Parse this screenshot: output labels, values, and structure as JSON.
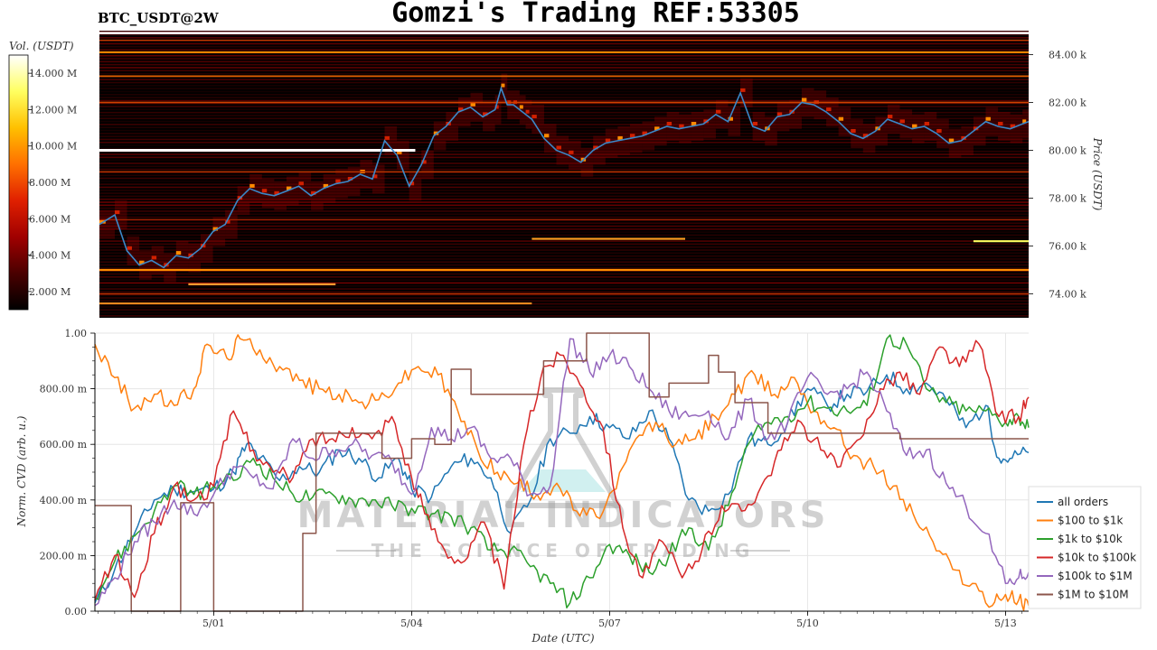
{
  "header": {
    "symbol": "BTC_USDT@2W",
    "title": "Gomzi's Trading REF:53305"
  },
  "colors": {
    "heatmap_background": "#000000",
    "price_line": "#3a88c8",
    "white_wall": "#ffffff"
  },
  "watermark": {
    "brand": "MATERIAL INDICATORS",
    "tagline": "THE SCIENCE OF TRADING",
    "icon": "flask-icon"
  },
  "chart_data": [
    {
      "type": "heatmap",
      "name": "order-book-heatmap",
      "y_axis_label": "Price (USDT)",
      "y_ticks": [
        {
          "value": 74000,
          "label": "74.00 k"
        },
        {
          "value": 76000,
          "label": "76.00 k"
        },
        {
          "value": 78000,
          "label": "78.00 k"
        },
        {
          "value": 80000,
          "label": "80.00 k"
        },
        {
          "value": 82000,
          "label": "82.00 k"
        },
        {
          "value": 84000,
          "label": "84.00 k"
        }
      ],
      "y_range": [
        73000,
        85000
      ],
      "x_range_days": [
        -2.45,
        12.7
      ],
      "colorbar": {
        "label": "Vol. (USDT)",
        "range": [
          1000000,
          15000000
        ],
        "ticks": [
          {
            "value": 2000000,
            "label": "2.000 M"
          },
          {
            "value": 4000000,
            "label": "4.000 M"
          },
          {
            "value": 6000000,
            "label": "6.000 M"
          },
          {
            "value": 8000000,
            "label": "8.000 M"
          },
          {
            "value": 10000000,
            "label": "10.000 M"
          },
          {
            "value": 12000000,
            "label": "12.000 M"
          },
          {
            "value": 14000000,
            "label": "14.000 M"
          }
        ],
        "colors": [
          "#000000",
          "#4a0000",
          "#a00000",
          "#e02000",
          "#ff7000",
          "#ffc000",
          "#ffff60",
          "#ffffff"
        ]
      },
      "price_series": {
        "x": [
          -2.45,
          -2.2,
          -2.0,
          -1.8,
          -1.6,
          -1.4,
          -1.2,
          -1.0,
          -0.8,
          -0.6,
          -0.4,
          -0.2,
          0.0,
          0.2,
          0.4,
          0.6,
          0.8,
          1.0,
          1.2,
          1.4,
          1.6,
          1.8,
          2.0,
          2.2,
          2.4,
          2.6,
          2.8,
          3.0,
          3.2,
          3.4,
          3.6,
          3.8,
          4.0,
          4.1,
          4.2,
          4.3,
          4.4,
          4.5,
          4.6,
          4.8,
          5.0,
          5.2,
          5.4,
          5.6,
          5.8,
          6.0,
          6.2,
          6.4,
          6.6,
          6.8,
          7.0,
          7.2,
          7.4,
          7.6,
          7.8,
          8.0,
          8.2,
          8.4,
          8.6,
          8.8,
          9.0,
          9.2,
          9.4,
          9.6,
          9.8,
          10.0,
          10.2,
          10.4,
          10.6,
          10.8,
          11.0,
          11.2,
          11.4,
          11.6,
          11.8,
          12.0,
          12.2,
          12.4,
          12.6,
          12.7
        ],
        "y": [
          76900,
          77300,
          75800,
          75200,
          75400,
          75100,
          75600,
          75500,
          75900,
          76600,
          76900,
          77900,
          78400,
          78200,
          78100,
          78300,
          78500,
          78100,
          78400,
          78600,
          78700,
          79000,
          78800,
          80400,
          79800,
          78500,
          79400,
          80600,
          81000,
          81600,
          81800,
          81400,
          81700,
          82600,
          81900,
          81900,
          81700,
          81500,
          81300,
          80500,
          80000,
          79800,
          79500,
          80000,
          80300,
          80400,
          80500,
          80600,
          80800,
          81000,
          80900,
          81000,
          81100,
          81500,
          81200,
          82400,
          81000,
          80800,
          81400,
          81500,
          82000,
          81900,
          81600,
          81200,
          80700,
          80500,
          80800,
          81300,
          81100,
          80900,
          81000,
          80700,
          80300,
          80400,
          80800,
          81200,
          81000,
          80900,
          81100,
          81200
        ]
      }
    },
    {
      "type": "line",
      "name": "cvd-chart",
      "xlabel": "Date (UTC)",
      "ylabel": "Norm. CVD (arb. u.)",
      "x_range_days": [
        -1.8,
        12.35
      ],
      "y_range": [
        0,
        1
      ],
      "x_ticks": [
        {
          "value": 0,
          "label": "5/01"
        },
        {
          "value": 3,
          "label": "5/04"
        },
        {
          "value": 6,
          "label": "5/07"
        },
        {
          "value": 9,
          "label": "5/10"
        },
        {
          "value": 12,
          "label": "5/13"
        }
      ],
      "y_ticks": [
        {
          "value": 0,
          "label": "0.00"
        },
        {
          "value": 0.2,
          "label": "200.00 m"
        },
        {
          "value": 0.4,
          "label": "400.00 m"
        },
        {
          "value": 0.6,
          "label": "600.00 m"
        },
        {
          "value": 0.8,
          "label": "800.00 m"
        },
        {
          "value": 1,
          "label": "1.00"
        }
      ],
      "legend_position": "right",
      "series": [
        {
          "name": "all orders",
          "color": "#1f77b4",
          "x": [
            -1.8,
            -1.5,
            -1.2,
            -0.9,
            -0.6,
            -0.3,
            0.0,
            0.3,
            0.5,
            0.7,
            1.0,
            1.3,
            1.6,
            1.9,
            2.2,
            2.5,
            2.8,
            3.0,
            3.3,
            3.6,
            3.9,
            4.2,
            4.5,
            4.8,
            5.1,
            5.4,
            5.7,
            6.0,
            6.3,
            6.6,
            6.9,
            7.2,
            7.5,
            7.8,
            8.1,
            8.4,
            8.7,
            9.0,
            9.3,
            9.6,
            9.9,
            10.2,
            10.5,
            10.8,
            11.1,
            11.4,
            11.7,
            11.9,
            12.1,
            12.35
          ],
          "y": [
            0.03,
            0.15,
            0.28,
            0.4,
            0.44,
            0.43,
            0.44,
            0.5,
            0.6,
            0.55,
            0.47,
            0.52,
            0.5,
            0.58,
            0.55,
            0.48,
            0.55,
            0.44,
            0.41,
            0.52,
            0.55,
            0.48,
            0.28,
            0.4,
            0.62,
            0.64,
            0.7,
            0.66,
            0.62,
            0.72,
            0.62,
            0.4,
            0.36,
            0.42,
            0.62,
            0.6,
            0.68,
            0.8,
            0.74,
            0.78,
            0.79,
            0.85,
            0.8,
            0.82,
            0.76,
            0.66,
            0.74,
            0.55,
            0.55,
            0.57
          ]
        },
        {
          "name": "$100 to $1k",
          "color": "#ff7f0e",
          "x": [
            -1.8,
            -1.5,
            -1.2,
            -0.9,
            -0.6,
            -0.3,
            -0.1,
            0.2,
            0.4,
            0.7,
            1.0,
            1.3,
            1.6,
            1.9,
            2.2,
            2.5,
            2.8,
            3.1,
            3.4,
            3.7,
            4.0,
            4.3,
            4.6,
            4.9,
            5.2,
            5.5,
            5.8,
            6.1,
            6.4,
            6.7,
            7.0,
            7.3,
            7.6,
            7.9,
            8.2,
            8.5,
            8.8,
            9.1,
            9.4,
            9.7,
            10.0,
            10.3,
            10.6,
            10.9,
            11.2,
            11.5,
            11.8,
            12.0,
            12.2,
            12.35
          ],
          "y": [
            0.96,
            0.84,
            0.73,
            0.78,
            0.74,
            0.8,
            0.96,
            0.91,
            0.98,
            0.94,
            0.88,
            0.83,
            0.8,
            0.78,
            0.75,
            0.76,
            0.82,
            0.88,
            0.85,
            0.72,
            0.58,
            0.5,
            0.46,
            0.42,
            0.46,
            0.36,
            0.34,
            0.44,
            0.62,
            0.68,
            0.6,
            0.62,
            0.7,
            0.78,
            0.85,
            0.78,
            0.84,
            0.72,
            0.66,
            0.56,
            0.52,
            0.45,
            0.35,
            0.25,
            0.15,
            0.1,
            0.02,
            0.06,
            0.04,
            0.02
          ]
        },
        {
          "name": "$1k to $10k",
          "color": "#2ca02c",
          "x": [
            -1.8,
            -1.5,
            -1.2,
            -0.9,
            -0.6,
            -0.3,
            0.0,
            0.3,
            0.6,
            0.9,
            1.2,
            1.5,
            1.8,
            2.1,
            2.4,
            2.7,
            3.0,
            3.3,
            3.6,
            3.9,
            4.2,
            4.5,
            4.8,
            5.1,
            5.4,
            5.7,
            6.0,
            6.3,
            6.6,
            6.9,
            7.2,
            7.5,
            7.8,
            8.1,
            8.4,
            8.7,
            9.0,
            9.3,
            9.6,
            9.9,
            10.2,
            10.5,
            10.8,
            11.1,
            11.4,
            11.7,
            12.0,
            12.2,
            12.35
          ],
          "y": [
            0.05,
            0.18,
            0.27,
            0.36,
            0.45,
            0.42,
            0.45,
            0.47,
            0.55,
            0.48,
            0.42,
            0.41,
            0.42,
            0.4,
            0.4,
            0.38,
            0.37,
            0.35,
            0.34,
            0.3,
            0.22,
            0.22,
            0.16,
            0.1,
            0.03,
            0.12,
            0.24,
            0.2,
            0.14,
            0.2,
            0.3,
            0.22,
            0.38,
            0.6,
            0.68,
            0.7,
            0.75,
            0.73,
            0.72,
            0.74,
            0.98,
            0.96,
            0.8,
            0.75,
            0.72,
            0.72,
            0.68,
            0.7,
            0.66
          ]
        },
        {
          "name": "$10k to $100k",
          "color": "#d62728",
          "x": [
            -1.8,
            -1.5,
            -1.2,
            -0.9,
            -0.6,
            -0.3,
            0.0,
            0.3,
            0.6,
            0.9,
            1.2,
            1.5,
            1.8,
            2.1,
            2.4,
            2.7,
            3.0,
            3.2,
            3.5,
            3.8,
            4.1,
            4.4,
            4.7,
            5.0,
            5.3,
            5.6,
            5.9,
            6.2,
            6.5,
            6.8,
            7.1,
            7.4,
            7.7,
            8.0,
            8.3,
            8.6,
            8.9,
            9.2,
            9.5,
            9.8,
            10.1,
            10.4,
            10.7,
            11.0,
            11.3,
            11.6,
            11.9,
            12.2,
            12.35
          ],
          "y": [
            0.04,
            0.2,
            0.05,
            0.28,
            0.45,
            0.4,
            0.45,
            0.72,
            0.58,
            0.5,
            0.48,
            0.62,
            0.62,
            0.66,
            0.62,
            0.7,
            0.48,
            0.35,
            0.22,
            0.18,
            0.32,
            0.08,
            0.6,
            0.88,
            0.92,
            0.8,
            0.66,
            0.3,
            0.12,
            0.25,
            0.12,
            0.22,
            0.38,
            0.36,
            0.45,
            0.58,
            0.68,
            0.58,
            0.52,
            0.62,
            0.8,
            0.86,
            0.78,
            0.95,
            0.88,
            0.96,
            0.7,
            0.7,
            0.77
          ]
        },
        {
          "name": "$100k to $1M",
          "color": "#9467bd",
          "x": [
            -1.8,
            -1.5,
            -1.2,
            -0.9,
            -0.6,
            -0.3,
            0.0,
            0.3,
            0.6,
            0.9,
            1.2,
            1.5,
            1.8,
            2.1,
            2.4,
            2.7,
            3.0,
            3.3,
            3.6,
            3.9,
            4.2,
            4.5,
            4.8,
            5.1,
            5.4,
            5.7,
            6.0,
            6.3,
            6.6,
            6.9,
            7.2,
            7.5,
            7.8,
            8.1,
            8.4,
            8.7,
            9.0,
            9.3,
            9.6,
            9.9,
            10.2,
            10.5,
            10.8,
            11.1,
            11.4,
            11.7,
            12.0,
            12.2,
            12.35
          ],
          "y": [
            0.02,
            0.12,
            0.25,
            0.32,
            0.4,
            0.35,
            0.42,
            0.52,
            0.48,
            0.44,
            0.62,
            0.55,
            0.58,
            0.6,
            0.56,
            0.54,
            0.42,
            0.66,
            0.62,
            0.66,
            0.55,
            0.55,
            0.42,
            0.45,
            0.98,
            0.86,
            0.92,
            0.88,
            0.8,
            0.72,
            0.7,
            0.72,
            0.62,
            0.76,
            0.62,
            0.68,
            0.84,
            0.78,
            0.8,
            0.86,
            0.72,
            0.56,
            0.58,
            0.46,
            0.38,
            0.28,
            0.1,
            0.12,
            0.14
          ]
        },
        {
          "name": "$1M to $10M",
          "color": "#8c564b",
          "x": [
            -1.8,
            -1.25,
            -1.25,
            -0.5,
            -0.5,
            0.0,
            0.0,
            1.35,
            1.35,
            1.55,
            1.55,
            2.1,
            2.1,
            2.55,
            2.55,
            3.0,
            3.0,
            3.35,
            3.35,
            3.6,
            3.6,
            3.9,
            3.9,
            4.5,
            4.5,
            5.0,
            5.0,
            5.65,
            5.65,
            5.85,
            5.85,
            6.6,
            6.6,
            6.9,
            6.9,
            7.5,
            7.5,
            7.65,
            7.65,
            7.9,
            7.9,
            8.4,
            8.4,
            10.4,
            10.4,
            12.35
          ],
          "y": [
            0.38,
            0.38,
            0.0,
            0.0,
            0.39,
            0.39,
            0.0,
            0.0,
            0.28,
            0.28,
            0.64,
            0.64,
            0.64,
            0.64,
            0.55,
            0.55,
            0.62,
            0.62,
            0.6,
            0.6,
            0.87,
            0.87,
            0.78,
            0.78,
            0.78,
            0.78,
            0.9,
            0.9,
            1.0,
            1.0,
            1.0,
            1.0,
            0.77,
            0.77,
            0.82,
            0.82,
            0.92,
            0.92,
            0.86,
            0.86,
            0.75,
            0.75,
            0.64,
            0.64,
            0.62,
            0.62
          ]
        }
      ]
    }
  ]
}
